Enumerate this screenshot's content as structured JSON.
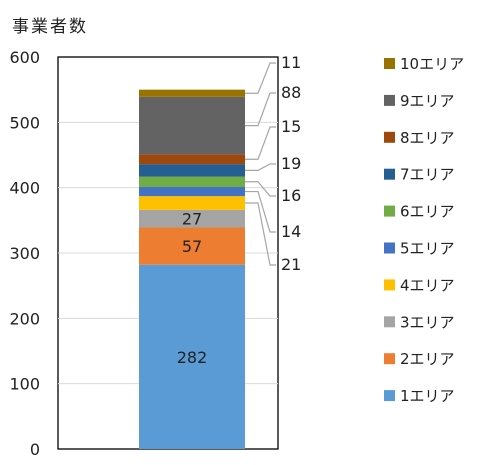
{
  "chart_data": {
    "type": "bar",
    "stacked": true,
    "y_axis_title": "事業者数",
    "ylim": [
      0,
      600
    ],
    "yticks": [
      0,
      100,
      200,
      300,
      400,
      500,
      600
    ],
    "grid": true,
    "legend_position": "right",
    "series": [
      {
        "name": "1エリア",
        "value": 282,
        "color": "#5b9bd5",
        "label_position": "inside"
      },
      {
        "name": "2エリア",
        "value": 57,
        "color": "#ed7d31",
        "label_position": "inside"
      },
      {
        "name": "3エリア",
        "value": 27,
        "color": "#a5a5a5",
        "label_position": "inside"
      },
      {
        "name": "4エリア",
        "value": 21,
        "color": "#ffc000",
        "label_position": "callout"
      },
      {
        "name": "5エリア",
        "value": 14,
        "color": "#4472c4",
        "label_position": "callout"
      },
      {
        "name": "6エリア",
        "value": 16,
        "color": "#70ad47",
        "label_position": "callout"
      },
      {
        "name": "7エリア",
        "value": 19,
        "color": "#255e91",
        "label_position": "callout"
      },
      {
        "name": "8エリア",
        "value": 15,
        "color": "#9e480e",
        "label_position": "callout"
      },
      {
        "name": "9エリア",
        "value": 88,
        "color": "#636363",
        "label_position": "callout"
      },
      {
        "name": "10エリア",
        "value": 11,
        "color": "#997300",
        "label_position": "callout"
      }
    ]
  }
}
